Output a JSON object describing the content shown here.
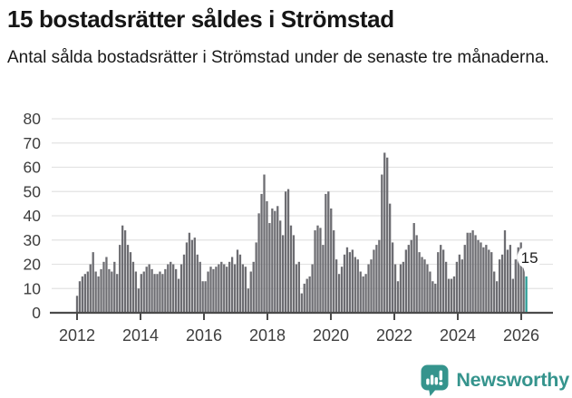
{
  "header": {
    "title": "15 bostadsrätter såldes i Strömstad",
    "subtitle": "Antal sålda bostadsrätter i Strömstad under de senaste tre månaderna."
  },
  "chart_data": {
    "type": "bar",
    "title": "15 bostadsrätter såldes i Strömstad",
    "xlabel": "",
    "ylabel": "",
    "ylim": [
      0,
      80
    ],
    "grid": true,
    "start_year": 2012,
    "frequency": "monthly",
    "y_ticks": [
      "0",
      "10",
      "20",
      "30",
      "40",
      "50",
      "60",
      "70",
      "80"
    ],
    "x_tick_labels": [
      "2012",
      "2014",
      "2016",
      "2018",
      "2020",
      "2022",
      "2024",
      "2026"
    ],
    "bar_color": "#6d6d72",
    "grid_color": "#e3e3e3",
    "axis_color": "#4b4b4b",
    "tick_label_color": "#3d3d3d",
    "values": [
      7,
      13,
      15,
      16,
      17,
      20,
      25,
      17,
      15,
      18,
      21,
      23,
      18,
      17,
      21,
      16,
      28,
      36,
      34,
      28,
      25,
      21,
      17,
      10,
      16,
      17,
      19,
      20,
      18,
      16,
      16,
      17,
      16,
      18,
      20,
      21,
      20,
      18,
      14,
      20,
      24,
      29,
      33,
      30,
      31,
      24,
      21,
      13,
      13,
      17,
      19,
      18,
      19,
      20,
      21,
      20,
      19,
      21,
      23,
      20,
      26,
      24,
      20,
      19,
      10,
      17,
      21,
      29,
      41,
      49,
      57,
      46,
      37,
      43,
      42,
      44,
      38,
      32,
      50,
      51,
      36,
      32,
      20,
      21,
      8,
      12,
      14,
      15,
      20,
      34,
      36,
      35,
      28,
      49,
      50,
      43,
      34,
      22,
      16,
      19,
      24,
      27,
      25,
      26,
      23,
      22,
      17,
      15,
      16,
      20,
      22,
      26,
      28,
      30,
      57,
      66,
      64,
      45,
      29,
      20,
      13,
      20,
      21,
      26,
      28,
      30,
      37,
      32,
      25,
      23,
      22,
      20,
      17,
      13,
      12,
      25,
      28,
      26,
      21,
      14,
      14,
      15,
      21,
      24,
      22,
      28,
      33,
      33,
      34,
      32,
      30,
      29,
      27,
      28,
      26,
      25,
      17,
      13,
      22,
      24,
      34,
      26,
      28,
      14,
      22,
      27,
      29,
      26,
      15
    ],
    "highlight": {
      "index": 168,
      "value": 15,
      "label": "15",
      "color": "#2a9c95",
      "label_color": "#1a1a1a",
      "bubble_color": "#ffffff"
    }
  },
  "footer": {
    "brand": "Newsworthy",
    "brand_color": "#35948d",
    "logo_icon": "newsworthy-speech-bubble-bar-chart-icon"
  }
}
